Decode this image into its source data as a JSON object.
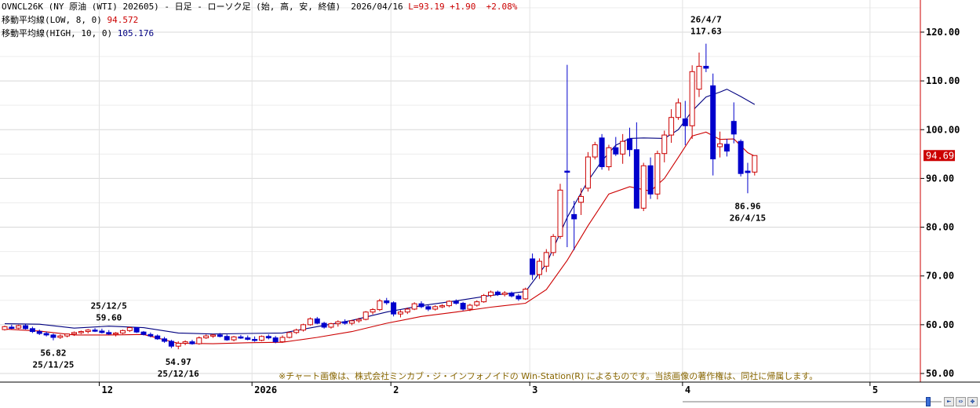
{
  "header": {
    "line1_title": "OVNCL26K (NY 原油 (WTI) 202605) - 日足 - ローソク足 (始, 高, 安, 終値)",
    "line1_date": "2026/04/16",
    "line1_last": "L=93.19",
    "line1_change": "+1.90",
    "line1_pct": "+2.08%",
    "ma_low_label": "移動平均線(LOW, 8, 0)",
    "ma_low_value": "94.572",
    "ma_high_label": "移動平均線(HIGH, 10, 0)",
    "ma_high_value": "105.176"
  },
  "copyright": "※チャート画像は、株式会社ミンカブ・ジ・インフォノイドの Win-Station(R) によるものです。当該画像の著作権は、同社に帰属します。",
  "current_price_badge": "94.69",
  "annotations": [
    {
      "date": "25/11/25",
      "value": "56.82",
      "type": "low"
    },
    {
      "date": "25/12/5",
      "value": "59.60",
      "type": "high"
    },
    {
      "date": "25/12/16",
      "value": "54.97",
      "type": "low"
    },
    {
      "date": "26/4/7",
      "value": "117.63",
      "type": "high"
    },
    {
      "date": "26/4/15",
      "value": "86.96",
      "type": "low"
    }
  ],
  "colors": {
    "up": "#cc0000",
    "down": "#0000cc",
    "ma_low": "#cc0000",
    "ma_high": "#000080",
    "grid": "#d8d8d8",
    "badge": "#cc0000"
  },
  "chart_data": {
    "type": "candlestick",
    "ylim": [
      48,
      127
    ],
    "y_ticks": [
      "50.00",
      "60.00",
      "70.00",
      "80.00",
      "90.00",
      "100.00",
      "110.00",
      "120.00"
    ],
    "x_tick_labels": [
      {
        "label": "12",
        "index": 14
      },
      {
        "label": "2026",
        "index": 36
      },
      {
        "label": "2",
        "index": 56
      },
      {
        "label": "3",
        "index": 76
      },
      {
        "label": "4",
        "index": 98
      },
      {
        "label": "5",
        "index": 125
      }
    ],
    "candles": [
      [
        59.0,
        59.8,
        58.8,
        59.6
      ],
      [
        59.5,
        60.0,
        59.1,
        59.3
      ],
      [
        59.3,
        60.0,
        59.1,
        59.8
      ],
      [
        59.8,
        60.2,
        59.0,
        59.2
      ],
      [
        59.2,
        59.6,
        58.3,
        58.6
      ],
      [
        58.6,
        59.0,
        57.9,
        58.2
      ],
      [
        58.2,
        58.6,
        57.6,
        57.9
      ],
      [
        57.9,
        58.2,
        56.8,
        57.4
      ],
      [
        57.4,
        58.0,
        57.1,
        57.7
      ],
      [
        57.7,
        58.2,
        57.4,
        58.1
      ],
      [
        58.1,
        58.6,
        57.7,
        58.4
      ],
      [
        58.4,
        58.8,
        58.1,
        58.6
      ],
      [
        58.6,
        59.1,
        58.2,
        58.9
      ],
      [
        58.9,
        59.3,
        58.5,
        58.7
      ],
      [
        58.7,
        59.2,
        58.2,
        58.4
      ],
      [
        58.4,
        58.9,
        57.9,
        58.1
      ],
      [
        58.1,
        58.5,
        57.6,
        58.3
      ],
      [
        58.3,
        59.0,
        58.1,
        58.8
      ],
      [
        58.8,
        59.6,
        58.5,
        59.4
      ],
      [
        59.4,
        59.5,
        58.3,
        58.5
      ],
      [
        58.5,
        58.7,
        57.8,
        58.0
      ],
      [
        58.0,
        58.4,
        57.4,
        57.7
      ],
      [
        57.7,
        58.0,
        56.9,
        57.1
      ],
      [
        57.1,
        57.5,
        56.3,
        56.6
      ],
      [
        56.6,
        56.9,
        55.2,
        55.6
      ],
      [
        55.6,
        56.6,
        54.97,
        56.2
      ],
      [
        56.2,
        56.8,
        55.8,
        56.5
      ],
      [
        56.5,
        56.9,
        55.9,
        56.1
      ],
      [
        56.1,
        57.6,
        55.9,
        57.3
      ],
      [
        57.3,
        58.0,
        57.1,
        57.7
      ],
      [
        57.7,
        58.1,
        57.3,
        57.9
      ],
      [
        57.9,
        58.3,
        57.4,
        57.6
      ],
      [
        57.6,
        58.0,
        56.7,
        56.9
      ],
      [
        56.9,
        57.7,
        56.6,
        57.5
      ],
      [
        57.5,
        57.9,
        57.1,
        57.3
      ],
      [
        57.3,
        57.8,
        56.8,
        57.0
      ],
      [
        57.0,
        57.6,
        56.5,
        56.8
      ],
      [
        56.8,
        57.8,
        56.6,
        57.6
      ],
      [
        57.6,
        58.0,
        57.0,
        57.3
      ],
      [
        57.3,
        57.7,
        56.2,
        56.5
      ],
      [
        56.5,
        57.8,
        56.3,
        57.4
      ],
      [
        57.4,
        58.6,
        57.2,
        58.4
      ],
      [
        58.4,
        59.2,
        58.1,
        58.9
      ],
      [
        58.9,
        60.2,
        58.6,
        60.0
      ],
      [
        60.0,
        61.5,
        59.8,
        61.2
      ],
      [
        61.2,
        61.6,
        60.1,
        60.3
      ],
      [
        60.3,
        60.6,
        59.2,
        59.5
      ],
      [
        59.5,
        60.4,
        59.2,
        60.2
      ],
      [
        60.2,
        60.9,
        59.6,
        60.6
      ],
      [
        60.6,
        61.1,
        60.0,
        60.3
      ],
      [
        60.3,
        61.0,
        59.9,
        60.8
      ],
      [
        60.8,
        61.4,
        60.4,
        61.1
      ],
      [
        61.1,
        62.8,
        60.9,
        62.6
      ],
      [
        62.6,
        63.4,
        62.1,
        63.1
      ],
      [
        63.1,
        65.3,
        62.8,
        64.9
      ],
      [
        64.9,
        65.5,
        64.1,
        64.5
      ],
      [
        64.5,
        64.8,
        61.7,
        62.2
      ],
      [
        62.2,
        63.0,
        61.5,
        62.6
      ],
      [
        62.6,
        63.5,
        62.2,
        63.2
      ],
      [
        63.2,
        64.6,
        63.0,
        64.3
      ],
      [
        64.3,
        64.8,
        63.4,
        63.7
      ],
      [
        63.7,
        64.0,
        62.8,
        63.2
      ],
      [
        63.2,
        64.0,
        62.9,
        63.7
      ],
      [
        63.7,
        64.2,
        63.4,
        63.9
      ],
      [
        63.9,
        65.0,
        63.6,
        64.8
      ],
      [
        64.8,
        65.2,
        64.1,
        64.4
      ],
      [
        64.4,
        64.7,
        62.9,
        63.2
      ],
      [
        63.2,
        64.3,
        62.8,
        64.0
      ],
      [
        64.0,
        65.0,
        63.7,
        64.7
      ],
      [
        64.7,
        66.3,
        64.5,
        66.0
      ],
      [
        66.0,
        67.0,
        65.6,
        66.7
      ],
      [
        66.7,
        67.0,
        65.9,
        66.2
      ],
      [
        66.2,
        66.9,
        65.8,
        66.5
      ],
      [
        66.5,
        66.8,
        65.6,
        65.9
      ],
      [
        65.9,
        66.3,
        64.9,
        65.3
      ],
      [
        65.3,
        67.6,
        65.1,
        67.3
      ],
      [
        73.5,
        74.6,
        69.2,
        70.3
      ],
      [
        70.3,
        73.6,
        69.4,
        73.0
      ],
      [
        72.0,
        75.5,
        70.8,
        74.8
      ],
      [
        74.8,
        78.6,
        74.1,
        78.1
      ],
      [
        78.1,
        88.9,
        77.6,
        87.6
      ],
      [
        91.5,
        113.3,
        75.9,
        91.4
      ],
      [
        82.6,
        85.4,
        75.3,
        81.7
      ],
      [
        85.1,
        88.0,
        82.5,
        86.3
      ],
      [
        88.0,
        95.4,
        87.3,
        94.4
      ],
      [
        94.4,
        97.5,
        93.9,
        96.9
      ],
      [
        98.3,
        99.1,
        91.8,
        92.4
      ],
      [
        92.4,
        96.9,
        91.6,
        96.3
      ],
      [
        96.3,
        98.5,
        94.6,
        95.0
      ],
      [
        95.0,
        99.1,
        93.0,
        97.6
      ],
      [
        98.1,
        100.4,
        94.5,
        95.9
      ],
      [
        95.9,
        101.5,
        84.5,
        83.9
      ],
      [
        83.9,
        93.2,
        83.3,
        92.6
      ],
      [
        92.6,
        94.3,
        85.8,
        86.8
      ],
      [
        86.8,
        95.7,
        85.7,
        95.1
      ],
      [
        95.1,
        99.8,
        93.3,
        98.9
      ],
      [
        98.9,
        104.2,
        97.3,
        102.5
      ],
      [
        102.5,
        106.4,
        102.0,
        105.5
      ],
      [
        102.2,
        105.9,
        96.8,
        100.8
      ],
      [
        100.8,
        113.2,
        98.1,
        111.9
      ],
      [
        108.3,
        115.8,
        106.7,
        113.0
      ],
      [
        113.0,
        117.63,
        111.8,
        112.6
      ],
      [
        109.0,
        111.5,
        90.6,
        94.0
      ],
      [
        96.5,
        99.6,
        94.3,
        97.1
      ],
      [
        97.0,
        98.1,
        94.5,
        95.6
      ],
      [
        101.7,
        105.6,
        97.2,
        99.1
      ],
      [
        97.6,
        98.0,
        90.4,
        91.0
      ],
      [
        91.5,
        93.2,
        86.96,
        91.2
      ],
      [
        91.3,
        94.7,
        90.6,
        94.69
      ]
    ],
    "ma_low_8": [
      [
        0,
        59.1
      ],
      [
        5,
        58.7
      ],
      [
        10,
        57.9
      ],
      [
        15,
        57.9
      ],
      [
        20,
        58.0
      ],
      [
        25,
        56.2
      ],
      [
        30,
        56.1
      ],
      [
        35,
        56.3
      ],
      [
        40,
        56.4
      ],
      [
        45,
        57.4
      ],
      [
        50,
        58.6
      ],
      [
        55,
        60.3
      ],
      [
        60,
        61.7
      ],
      [
        65,
        62.6
      ],
      [
        70,
        63.6
      ],
      [
        75,
        64.4
      ],
      [
        78,
        67.2
      ],
      [
        81,
        73.2
      ],
      [
        84,
        80.3
      ],
      [
        87,
        86.8
      ],
      [
        90,
        88.3
      ],
      [
        93,
        87.4
      ],
      [
        95,
        90.0
      ],
      [
        97,
        94.3
      ],
      [
        99,
        98.7
      ],
      [
        101,
        99.5
      ],
      [
        103,
        98.0
      ],
      [
        105,
        98.1
      ],
      [
        107,
        95.3
      ],
      [
        108,
        94.572
      ]
    ],
    "ma_high_10": [
      [
        0,
        60.2
      ],
      [
        5,
        60.1
      ],
      [
        10,
        59.3
      ],
      [
        15,
        59.7
      ],
      [
        20,
        59.4
      ],
      [
        25,
        58.3
      ],
      [
        30,
        58.1
      ],
      [
        35,
        58.2
      ],
      [
        40,
        58.3
      ],
      [
        45,
        59.6
      ],
      [
        50,
        60.9
      ],
      [
        55,
        62.6
      ],
      [
        60,
        63.9
      ],
      [
        65,
        64.9
      ],
      [
        70,
        66.0
      ],
      [
        75,
        66.8
      ],
      [
        78,
        72.5
      ],
      [
        81,
        82.0
      ],
      [
        84,
        89.5
      ],
      [
        86,
        93.6
      ],
      [
        88,
        96.8
      ],
      [
        90,
        98.2
      ],
      [
        92,
        98.3
      ],
      [
        95,
        98.2
      ],
      [
        97,
        100.0
      ],
      [
        99,
        103.8
      ],
      [
        101,
        106.7
      ],
      [
        103,
        107.7
      ],
      [
        104,
        108.3
      ],
      [
        106,
        106.8
      ],
      [
        108,
        105.176
      ]
    ]
  }
}
